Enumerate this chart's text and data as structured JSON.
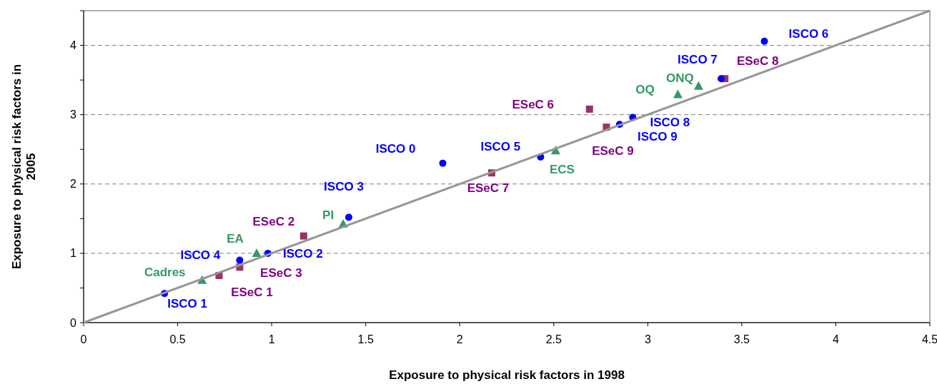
{
  "chart_data": {
    "type": "scatter",
    "xlabel": "Exposure to physical risk factors in 1998",
    "ylabel": "Exposure to physical risk factors in 2005",
    "xlim": [
      0,
      4.5
    ],
    "ylim": [
      0,
      4.5
    ],
    "xticks": [
      0,
      0.5,
      1,
      1.5,
      2,
      2.5,
      3,
      3.5,
      4,
      4.5
    ],
    "yticks": [
      0,
      {
        "value": 0.5,
        "label": null
      },
      1,
      {
        "value": 1.5,
        "label": null
      },
      2,
      {
        "value": 2.5,
        "label": null
      },
      3,
      {
        "value": 3.5,
        "label": null
      },
      4,
      {
        "value": 4.5,
        "label": null
      }
    ],
    "grid": "y",
    "series": [
      {
        "type": "line",
        "color": "#969696",
        "marker": "none",
        "line_style": "solid",
        "x": [
          0,
          4.5
        ],
        "values": [
          0,
          4.5
        ]
      },
      {
        "color": "#0000ff",
        "marker": "circle",
        "x": [
          1.91,
          0.43,
          0.98,
          1.41,
          0.83,
          2.43,
          3.62,
          3.39,
          2.92,
          2.85
        ],
        "values": [
          2.3,
          0.42,
          1.0,
          1.52,
          0.9,
          2.39,
          4.06,
          3.52,
          2.96,
          2.86
        ]
      },
      {
        "color": "#993366",
        "marker": "square",
        "x": [
          0.72,
          1.17,
          0.83,
          2.69,
          2.17,
          3.41,
          2.78
        ],
        "values": [
          0.68,
          1.25,
          0.8,
          3.08,
          2.16,
          3.52,
          2.82
        ]
      },
      {
        "color": "#339966",
        "marker": "triangle",
        "x": [
          0.63,
          0.92,
          1.38,
          2.51,
          3.16,
          3.27
        ],
        "values": [
          0.61,
          1.0,
          1.42,
          2.48,
          3.29,
          3.41
        ]
      }
    ],
    "annotations": [
      {
        "text": "ISCO 0",
        "x": 1.91,
        "y": 2.3
      },
      {
        "text": "ISCO 1",
        "x": 0.43,
        "y": 0.42
      },
      {
        "text": "ISCO 2",
        "x": 0.98,
        "y": 1.0
      },
      {
        "text": "ISCO 3",
        "x": 1.41,
        "y": 1.52
      },
      {
        "text": "ISCO 4",
        "x": 0.83,
        "y": 0.9
      },
      {
        "text": "ISCO 5",
        "x": 2.43,
        "y": 2.39
      },
      {
        "text": "ISCO 6",
        "x": 3.62,
        "y": 4.06
      },
      {
        "text": "ISCO 7",
        "x": 3.39,
        "y": 3.52
      },
      {
        "text": "ISCO 8",
        "x": 2.92,
        "y": 2.96
      },
      {
        "text": "ISCO 9",
        "x": 2.85,
        "y": 2.86
      },
      {
        "text": "ESeC 1",
        "x": 0.72,
        "y": 0.68
      },
      {
        "text": "ESeC 2",
        "x": 1.17,
        "y": 1.25
      },
      {
        "text": "ESeC 3",
        "x": 0.83,
        "y": 0.8
      },
      {
        "text": "ESeC 6",
        "x": 2.69,
        "y": 3.08
      },
      {
        "text": "ESeC 7",
        "x": 2.17,
        "y": 2.16
      },
      {
        "text": "ESeC 8",
        "x": 3.41,
        "y": 3.52
      },
      {
        "text": "ESeC 9",
        "x": 2.78,
        "y": 2.82
      },
      {
        "text": "Cadres",
        "x": 0.63,
        "y": 0.61
      },
      {
        "text": "EA",
        "x": 0.92,
        "y": 1.0
      },
      {
        "text": "PI",
        "x": 1.38,
        "y": 1.42
      },
      {
        "text": "ECS",
        "x": 2.51,
        "y": 2.48
      },
      {
        "text": "OQ",
        "x": 3.16,
        "y": 3.29
      },
      {
        "text": "ONQ",
        "x": 3.27,
        "y": 3.41
      }
    ]
  }
}
